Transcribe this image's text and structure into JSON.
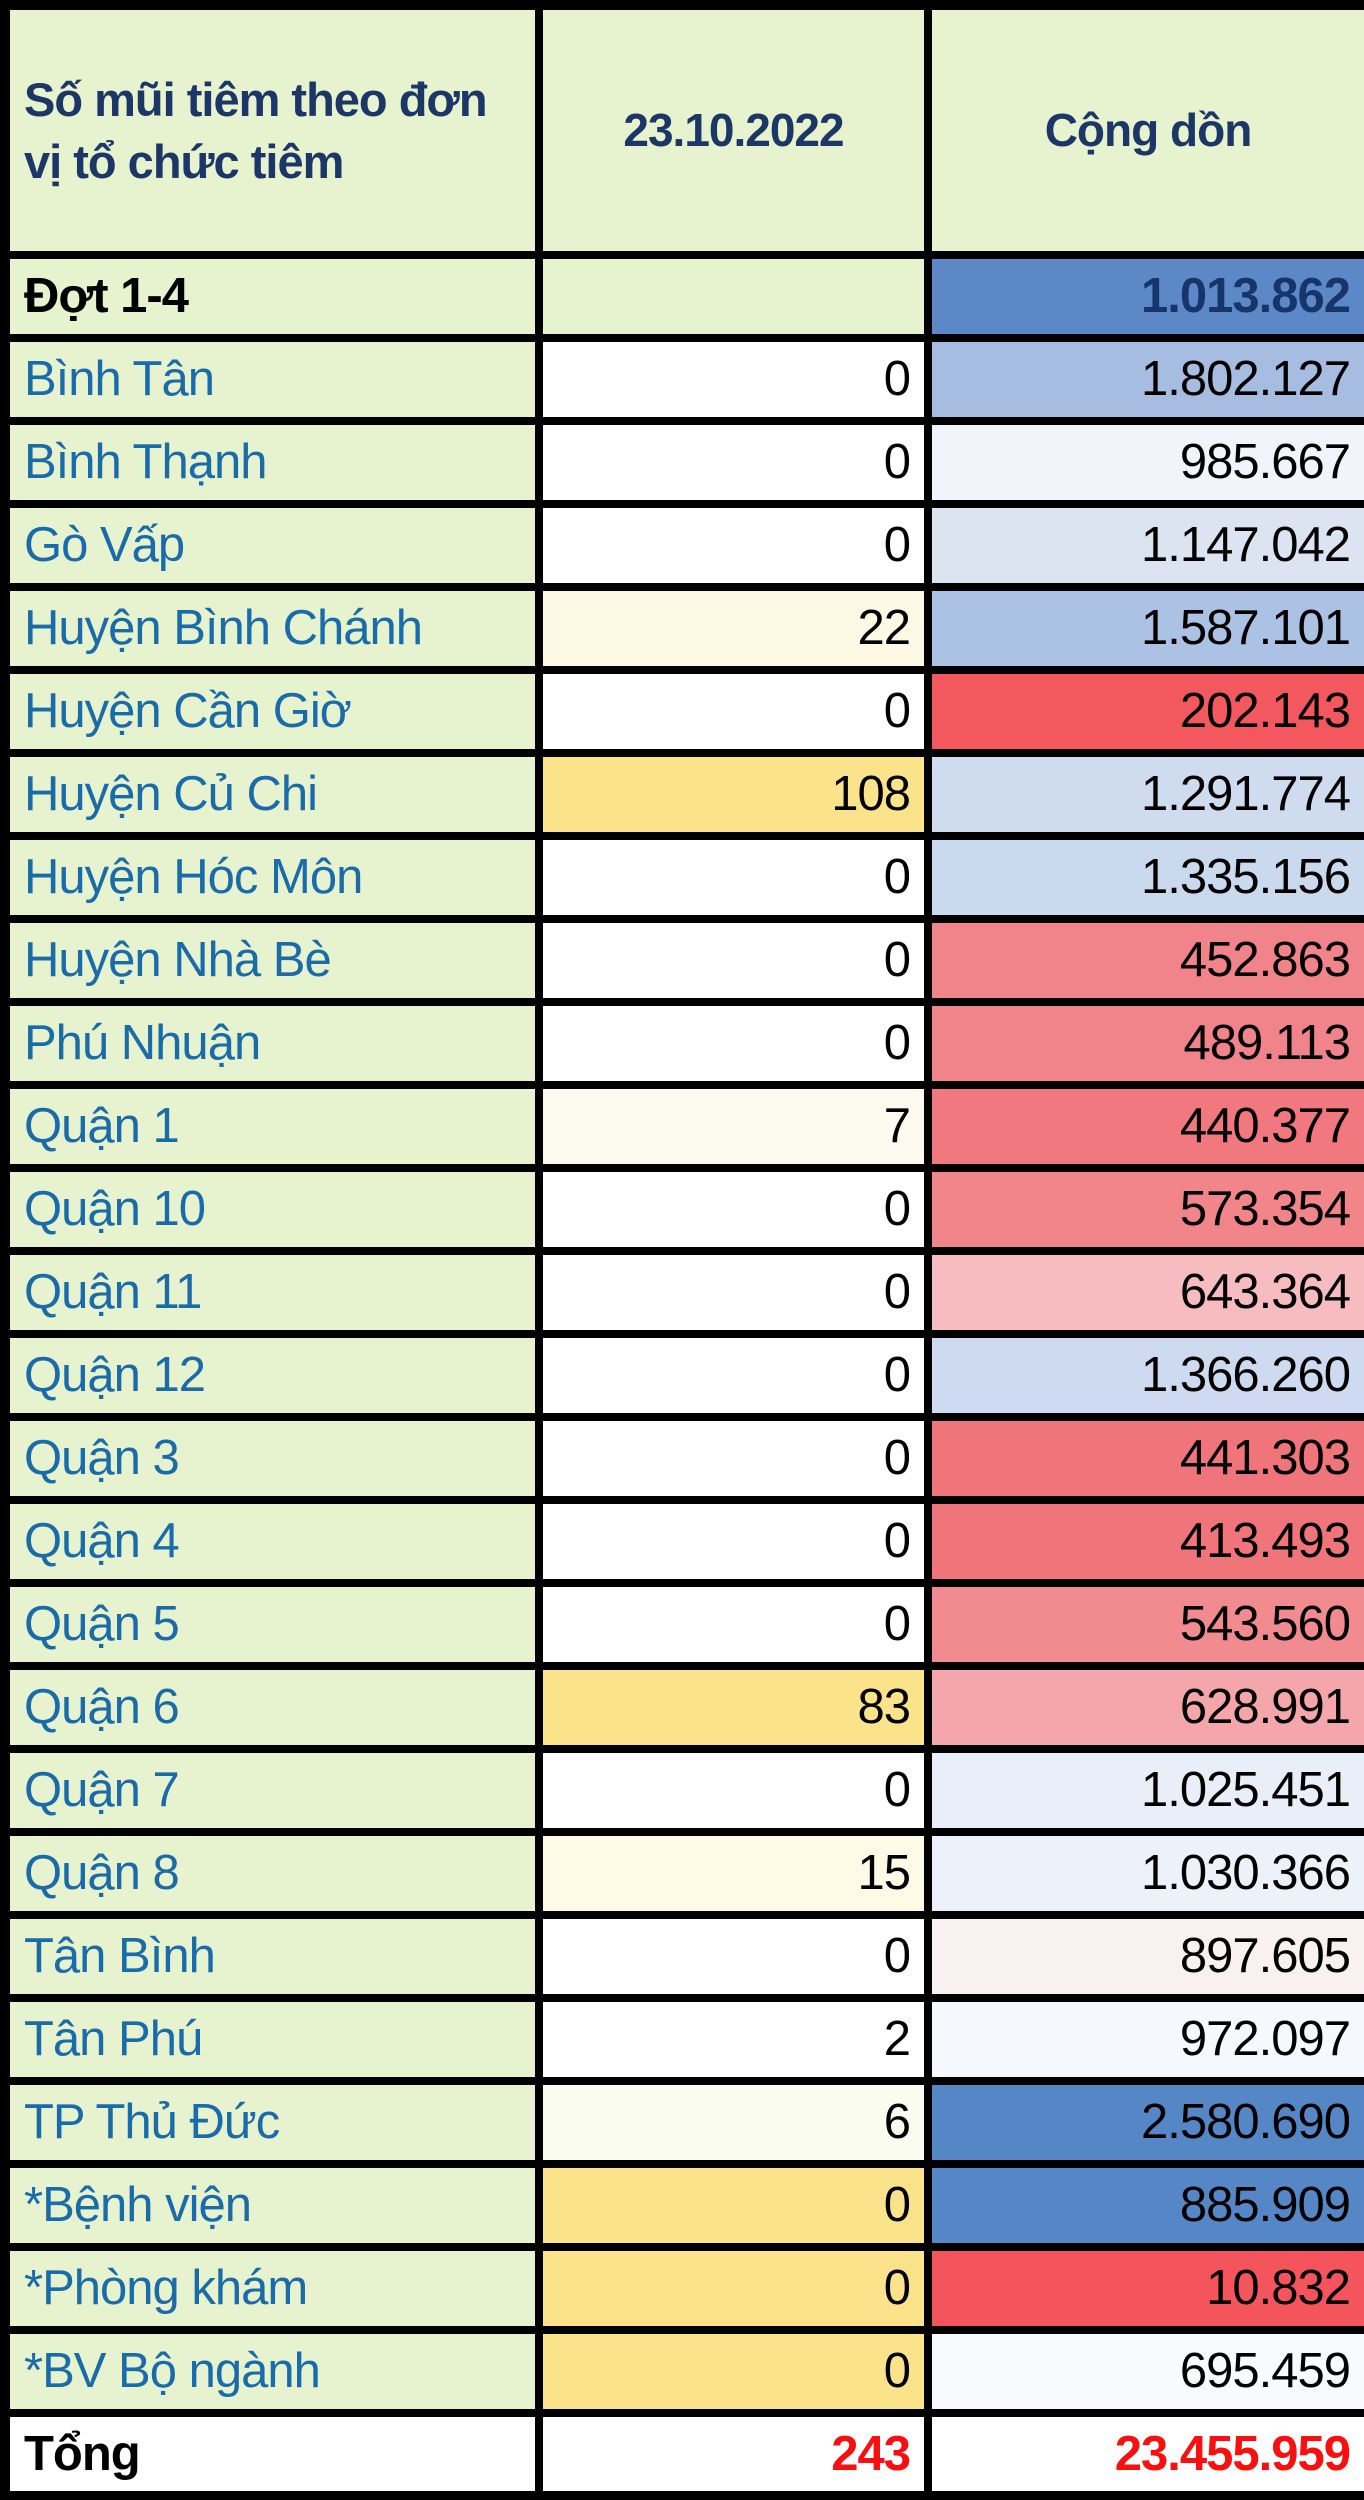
{
  "header": {
    "title": "Số mũi tiêm theo đơn vị tổ chức tiêm",
    "date_label": "23.10.2022",
    "cumulative_label": "Cộng dồn"
  },
  "colors": {
    "grid": "#000000",
    "label_bg": "#E6F3CE",
    "label_text": "#1A6BAA",
    "header_text": "#1C3667",
    "value_text": "#000000",
    "total_text": "#FA0F0F",
    "yellow_strong": "#FBE38C",
    "blue_strong": "#5586C6",
    "red_strong": "#F4585F"
  },
  "table": {
    "rows": [
      {
        "label": "Đợt 1-4",
        "daily": "",
        "cumulative": "1.013.862",
        "label_color": "#000000",
        "label_bold": true,
        "daily_bg": "#E6F3CE",
        "cum_bg": "#5C88C8",
        "cum_color": "#17356B",
        "cum_bold": true
      },
      {
        "label": "Bình Tân",
        "daily": "0",
        "cumulative": "1.802.127",
        "cum_bg": "#A6BDE1"
      },
      {
        "label": "Bình Thạnh",
        "daily": "0",
        "cumulative": "985.667",
        "cum_bg": "#F1F4FA"
      },
      {
        "label": "Gò Vấp",
        "daily": "0",
        "cumulative": "1.147.042",
        "cum_bg": "#DCE4F1"
      },
      {
        "label": "Huyện Bình Chánh",
        "daily": "22",
        "cumulative": "1.587.101",
        "daily_bg": "#FEF9E4",
        "cum_bg": "#ACC2E5"
      },
      {
        "label": "Huyện Cần Giờ",
        "daily": "0",
        "cumulative": "202.143",
        "cum_bg": "#F4585F"
      },
      {
        "label": "Huyện Củ Chi",
        "daily": "108",
        "cumulative": "1.291.774",
        "daily_bg": "#FBE38C",
        "cum_bg": "#CFDCF0"
      },
      {
        "label": "Huyện Hóc Môn",
        "daily": "0",
        "cumulative": "1.335.156",
        "cum_bg": "#CBD9EE"
      },
      {
        "label": "Huyện Nhà Bè",
        "daily": "0",
        "cumulative": "452.863",
        "cum_bg": "#F1848A"
      },
      {
        "label": "Phú Nhuận",
        "daily": "0",
        "cumulative": "489.113",
        "cum_bg": "#F1848A"
      },
      {
        "label": "Quận 1",
        "daily": "7",
        "cumulative": "440.377",
        "daily_bg": "#FCFAEF",
        "cum_bg": "#F0787E"
      },
      {
        "label": "Quận 10",
        "daily": "0",
        "cumulative": "573.354",
        "cum_bg": "#F1858A"
      },
      {
        "label": "Quận 11",
        "daily": "0",
        "cumulative": "643.364",
        "cum_bg": "#F6BCBF"
      },
      {
        "label": "Quận 12",
        "daily": "0",
        "cumulative": "1.366.260",
        "cum_bg": "#CEDAEF"
      },
      {
        "label": "Quận 3",
        "daily": "0",
        "cumulative": "441.303",
        "cum_bg": "#F0757B"
      },
      {
        "label": "Quận 4",
        "daily": "0",
        "cumulative": "413.493",
        "cum_bg": "#F0757B"
      },
      {
        "label": "Quận 5",
        "daily": "0",
        "cumulative": "543.560",
        "cum_bg": "#F28B8F"
      },
      {
        "label": "Quận 6",
        "daily": "83",
        "cumulative": "628.991",
        "daily_bg": "#FBE38C",
        "cum_bg": "#F5A6AA"
      },
      {
        "label": "Quận 7",
        "daily": "0",
        "cumulative": "1.025.451",
        "cum_bg": "#EAEEF8"
      },
      {
        "label": "Quận 8",
        "daily": "15",
        "cumulative": "1.030.366",
        "daily_bg": "#FEFAE6",
        "cum_bg": "#EDF2FA"
      },
      {
        "label": "Tân Bình",
        "daily": "0",
        "cumulative": "897.605",
        "cum_bg": "#F9F0F1"
      },
      {
        "label": "Tân Phú",
        "daily": "2",
        "cumulative": "972.097",
        "cum_bg": "#F5F8FC"
      },
      {
        "label": "TP Thủ Đức",
        "daily": "6",
        "cumulative": "2.580.690",
        "daily_bg": "#FBFCF0",
        "cum_bg": "#5586C6"
      },
      {
        "label": "*Bệnh viện",
        "daily": "0",
        "cumulative": "885.909",
        "daily_bg": "#FBE38C",
        "cum_bg": "#5586C6"
      },
      {
        "label": "*Phòng khám",
        "daily": "0",
        "cumulative": "10.832",
        "daily_bg": "#FBE38C",
        "cum_bg": "#F4545B"
      },
      {
        "label": "*BV Bộ ngành",
        "daily": "0",
        "cumulative": "695.459",
        "daily_bg": "#FBE38C",
        "cum_bg": "#F8FAFD"
      },
      {
        "label": "Tổng",
        "daily": "243",
        "cumulative": "23.455.959",
        "label_bg": "#FFFFFF",
        "label_color": "#000000",
        "label_bold": true,
        "daily_color": "#FA0F0F",
        "daily_bold": true,
        "cum_bg": "#FFFFFF",
        "cum_color": "#FA0F0F",
        "cum_bold": true
      }
    ]
  },
  "chart_data": {
    "type": "table",
    "title": "Số mũi tiêm theo đơn vị tổ chức tiêm",
    "columns": [
      "Số mũi tiêm theo đơn vị tổ chức tiêm",
      "23.10.2022",
      "Cộng dồn"
    ],
    "rows": [
      [
        "Đợt 1-4",
        null,
        1013862
      ],
      [
        "Bình Tân",
        0,
        1802127
      ],
      [
        "Bình Thạnh",
        0,
        985667
      ],
      [
        "Gò Vấp",
        0,
        1147042
      ],
      [
        "Huyện Bình Chánh",
        22,
        1587101
      ],
      [
        "Huyện Cần Giờ",
        0,
        202143
      ],
      [
        "Huyện Củ Chi",
        108,
        1291774
      ],
      [
        "Huyện Hóc Môn",
        0,
        1335156
      ],
      [
        "Huyện Nhà Bè",
        0,
        452863
      ],
      [
        "Phú Nhuận",
        0,
        489113
      ],
      [
        "Quận 1",
        7,
        440377
      ],
      [
        "Quận 10",
        0,
        573354
      ],
      [
        "Quận 11",
        0,
        643364
      ],
      [
        "Quận 12",
        0,
        1366260
      ],
      [
        "Quận 3",
        0,
        441303
      ],
      [
        "Quận 4",
        0,
        413493
      ],
      [
        "Quận 5",
        0,
        543560
      ],
      [
        "Quận 6",
        83,
        628991
      ],
      [
        "Quận 7",
        0,
        1025451
      ],
      [
        "Quận 8",
        15,
        1030366
      ],
      [
        "Tân Bình",
        0,
        897605
      ],
      [
        "Tân Phú",
        2,
        972097
      ],
      [
        "TP Thủ Đức",
        6,
        2580690
      ],
      [
        "*Bệnh viện",
        0,
        885909
      ],
      [
        "*Phòng khám",
        0,
        10832
      ],
      [
        "*BV Bộ ngành",
        0,
        695459
      ],
      [
        "Tổng",
        243,
        23455959
      ]
    ],
    "legend_note_colors": {
      "high_cumulative": "#5586C6",
      "mid_cumulative": "#A6BDE1",
      "low_cumulative": "#F4585F",
      "daily_nonzero": "#FBE38C"
    }
  }
}
